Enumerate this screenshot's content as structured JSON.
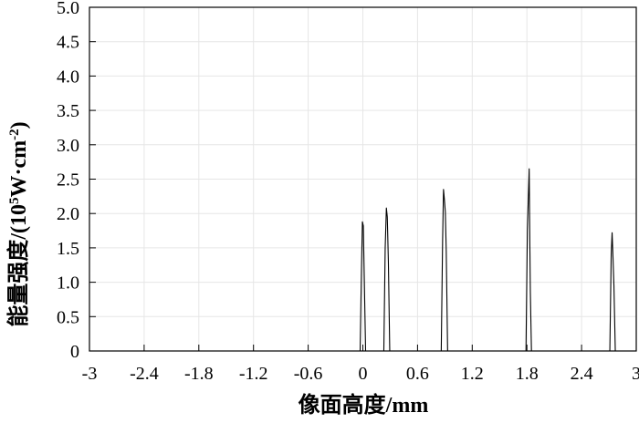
{
  "chart_data": {
    "type": "line",
    "title": "",
    "xlabel": "像面高度/mm",
    "ylabel": {
      "prefix": "能量强度/(10",
      "sup1": "5",
      "middle": "W·cm",
      "sup2": "-2",
      "suffix": ")"
    },
    "xlim": [
      -3,
      3
    ],
    "ylim": [
      0,
      5
    ],
    "x_ticks": [
      {
        "value": -3,
        "label": "-3"
      },
      {
        "value": -2.4,
        "label": "-2.4"
      },
      {
        "value": -1.8,
        "label": "-1.8"
      },
      {
        "value": -1.2,
        "label": "-1.2"
      },
      {
        "value": -0.6,
        "label": "-0.6"
      },
      {
        "value": 0,
        "label": "0"
      },
      {
        "value": 0.6,
        "label": "0.6"
      },
      {
        "value": 1.2,
        "label": "1.2"
      },
      {
        "value": 1.8,
        "label": "1.8"
      },
      {
        "value": 2.4,
        "label": "2.4"
      },
      {
        "value": 3,
        "label": "3"
      }
    ],
    "y_ticks": [
      {
        "value": 0,
        "label": "0"
      },
      {
        "value": 0.5,
        "label": "0.5"
      },
      {
        "value": 1,
        "label": "1.0"
      },
      {
        "value": 1.5,
        "label": "1.5"
      },
      {
        "value": 2,
        "label": "2.0"
      },
      {
        "value": 2.5,
        "label": "2.5"
      },
      {
        "value": 3,
        "label": "3.0"
      },
      {
        "value": 3.5,
        "label": "3.5"
      },
      {
        "value": 4,
        "label": "4.0"
      },
      {
        "value": 4.5,
        "label": "4.5"
      },
      {
        "value": 5,
        "label": "5.0"
      }
    ],
    "grid": true,
    "series": [
      {
        "color": "#000000",
        "points": [
          [
            -3,
            0
          ],
          [
            -0.03,
            0
          ],
          [
            -0.015,
            1.2
          ],
          [
            -0.005,
            1.88
          ],
          [
            0.005,
            1.82
          ],
          [
            0.015,
            1.1
          ],
          [
            0.03,
            0
          ],
          [
            0.23,
            0
          ],
          [
            0.245,
            1.5
          ],
          [
            0.258,
            2.08
          ],
          [
            0.268,
            1.95
          ],
          [
            0.28,
            1.3
          ],
          [
            0.295,
            0
          ],
          [
            0.86,
            0
          ],
          [
            0.875,
            1.6
          ],
          [
            0.885,
            2.35
          ],
          [
            0.895,
            2.2
          ],
          [
            0.905,
            2.02
          ],
          [
            0.915,
            1.45
          ],
          [
            0.93,
            0
          ],
          [
            1.79,
            0
          ],
          [
            1.805,
            1.75
          ],
          [
            1.815,
            2.2
          ],
          [
            1.825,
            2.65
          ],
          [
            1.832,
            1.6
          ],
          [
            1.838,
            0.85
          ],
          [
            1.85,
            0
          ],
          [
            2.71,
            0
          ],
          [
            2.725,
            1.4
          ],
          [
            2.735,
            1.72
          ],
          [
            2.745,
            1.35
          ],
          [
            2.755,
            0.95
          ],
          [
            2.77,
            0
          ],
          [
            3,
            0
          ]
        ]
      }
    ]
  }
}
